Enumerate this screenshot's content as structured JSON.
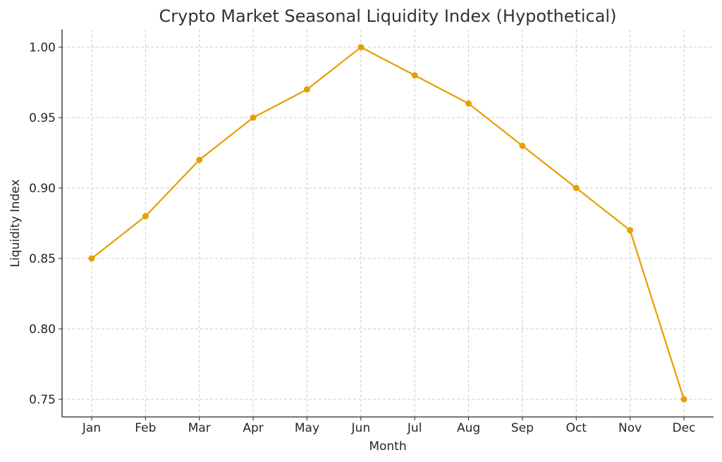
{
  "chart_data": {
    "type": "line",
    "title": "Crypto Market Seasonal Liquidity Index (Hypothetical)",
    "xlabel": "Month",
    "ylabel": "Liquidity Index",
    "categories": [
      "Jan",
      "Feb",
      "Mar",
      "Apr",
      "May",
      "Jun",
      "Jul",
      "Aug",
      "Sep",
      "Oct",
      "Nov",
      "Dec"
    ],
    "series": [
      {
        "name": "Liquidity Index",
        "values": [
          0.85,
          0.88,
          0.92,
          0.95,
          0.97,
          1.0,
          0.98,
          0.96,
          0.93,
          0.9,
          0.87,
          0.75
        ],
        "color": "#E69F00",
        "marker": "circle"
      }
    ],
    "yticks": [
      0.75,
      0.8,
      0.85,
      0.9,
      0.95,
      1.0
    ],
    "ytick_labels": [
      "0.75",
      "0.80",
      "0.85",
      "0.90",
      "0.95",
      "1.00"
    ],
    "ylim": [
      0.7375,
      1.0125
    ],
    "grid": true,
    "legend": "none"
  }
}
